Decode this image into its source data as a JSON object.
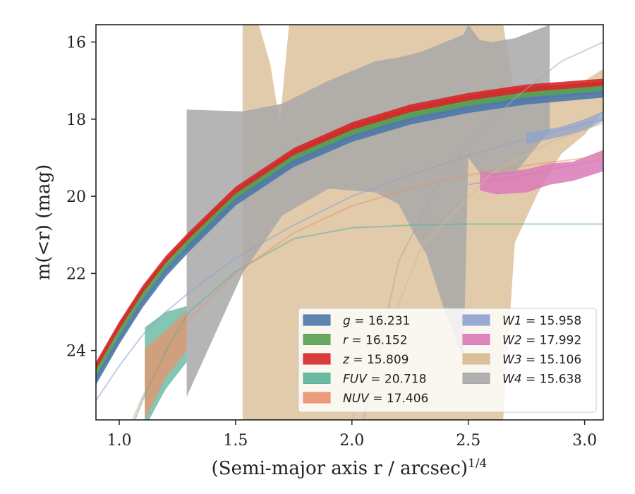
{
  "chart_data": {
    "type": "line",
    "xlabel": "(Semi-major axis r / arcsec)",
    "xlabel_exponent": "1/4",
    "ylabel": "m(<r) (mag)",
    "xlim": [
      0.9,
      3.08
    ],
    "ylim": [
      25.8,
      15.55
    ],
    "y_inverted": true,
    "grid": false,
    "legend_position": "lower right",
    "x_ticks": [
      1.0,
      1.5,
      2.0,
      2.5,
      3.0
    ],
    "x_tick_labels": [
      "1.0",
      "1.5",
      "2.0",
      "2.5",
      "3.0"
    ],
    "y_ticks": [
      16,
      18,
      20,
      22,
      24
    ],
    "y_tick_labels": [
      "16",
      "18",
      "20",
      "22",
      "24"
    ],
    "series": [
      {
        "name": "g",
        "legend_value": "16.231",
        "color": "#4c78a8",
        "x": [
          0.9,
          1.0,
          1.1,
          1.2,
          1.3,
          1.5,
          1.75,
          2.0,
          2.25,
          2.5,
          2.75,
          3.08
        ],
        "y": [
          24.75,
          23.7,
          22.75,
          21.95,
          21.3,
          20.1,
          19.1,
          18.45,
          18.0,
          17.7,
          17.48,
          17.3
        ],
        "band_width": 0.28,
        "line_alpha": 0.8,
        "band_alpha": 0.9
      },
      {
        "name": "r",
        "legend_value": "16.152",
        "color": "#59a14f",
        "x": [
          0.9,
          1.0,
          1.1,
          1.2,
          1.3,
          1.5,
          1.75,
          2.0,
          2.25,
          2.5,
          2.75,
          3.08
        ],
        "y": [
          24.55,
          23.5,
          22.55,
          21.75,
          21.12,
          19.95,
          18.95,
          18.3,
          17.85,
          17.55,
          17.32,
          17.15
        ],
        "band_width": 0.22,
        "line_alpha": 0.8,
        "band_alpha": 0.9
      },
      {
        "name": "z",
        "legend_value": "15.809",
        "color": "#d62728",
        "x": [
          0.9,
          1.0,
          1.1,
          1.2,
          1.3,
          1.5,
          1.75,
          2.0,
          2.25,
          2.5,
          2.75,
          3.08
        ],
        "y": [
          24.4,
          23.35,
          22.42,
          21.65,
          21.02,
          19.85,
          18.85,
          18.18,
          17.72,
          17.42,
          17.2,
          17.05
        ],
        "band_width": 0.2,
        "line_alpha": 0.8,
        "band_alpha": 0.9
      },
      {
        "name": "FUV",
        "legend_value": "20.718",
        "color": "#59b39a",
        "x": [
          0.9,
          1.0,
          1.1,
          1.2,
          1.3,
          1.5,
          1.75,
          2.0,
          2.25,
          2.5,
          2.75,
          3.08
        ],
        "y": [
          27.8,
          26.8,
          25.3,
          24.0,
          23.0,
          21.95,
          21.1,
          20.82,
          20.75,
          20.72,
          20.72,
          20.72
        ],
        "band_x": [
          1.11,
          1.2,
          1.29
        ],
        "band_lo": [
          23.4,
          23.0,
          22.85
        ],
        "band_hi": [
          26.0,
          25.0,
          24.3
        ],
        "line_alpha": 0.55,
        "band_alpha": 0.75
      },
      {
        "name": "NUV",
        "legend_value": "17.406",
        "color": "#e8916c",
        "x": [
          0.9,
          1.0,
          1.1,
          1.2,
          1.3,
          1.5,
          1.75,
          2.0,
          2.25,
          2.5,
          2.75,
          3.08
        ],
        "y": [
          28.0,
          26.6,
          25.2,
          24.1,
          23.2,
          22.0,
          20.95,
          20.25,
          19.8,
          19.45,
          19.2,
          18.95
        ],
        "band_x": [
          1.11,
          1.2,
          1.29
        ],
        "band_lo": [
          23.95,
          23.5,
          22.95
        ],
        "band_hi": [
          25.8,
          24.7,
          24.0
        ],
        "line_alpha": 0.5,
        "band_alpha": 0.75
      },
      {
        "name": "W1",
        "legend_value": "15.958",
        "color": "#8fa3cf",
        "x": [
          0.9,
          1.0,
          1.1,
          1.2,
          1.3,
          1.5,
          1.75,
          2.0,
          2.25,
          2.5,
          2.75,
          3.08
        ],
        "y": [
          25.3,
          24.4,
          23.6,
          23.0,
          22.5,
          21.6,
          20.75,
          20.0,
          19.45,
          18.95,
          18.5,
          18.0
        ],
        "band_x": [
          2.75,
          2.9,
          3.0,
          3.08
        ],
        "band_lo": [
          18.35,
          18.2,
          18.0,
          17.8
        ],
        "band_hi": [
          18.65,
          18.45,
          18.3,
          18.05
        ],
        "line_alpha": 0.55,
        "band_alpha": 0.75
      },
      {
        "name": "W2",
        "legend_value": "17.992",
        "color": "#d97ab8",
        "x": [
          2.5,
          2.7,
          2.9,
          3.08
        ],
        "y": [
          19.7,
          19.5,
          19.25,
          19.05
        ],
        "band_x": [
          2.55,
          2.62,
          2.75,
          2.85,
          2.95,
          3.08
        ],
        "band_lo": [
          19.35,
          19.4,
          19.3,
          19.15,
          19.1,
          18.8
        ],
        "band_hi": [
          19.85,
          19.95,
          19.9,
          19.7,
          19.6,
          19.35
        ],
        "line_alpha": 0.6,
        "band_alpha": 0.85
      },
      {
        "name": "W3",
        "legend_value": "15.106",
        "color": "#d7b98e",
        "x": [
          2.0,
          2.3,
          2.6,
          2.85,
          3.08
        ],
        "y": [
          25.8,
          21.3,
          19.4,
          18.6,
          18.1
        ],
        "band_x": [
          1.53,
          1.6,
          1.65,
          1.69,
          1.73,
          1.8,
          1.9,
          2.0,
          2.1,
          2.2,
          2.3,
          2.4,
          2.5,
          2.6,
          2.65,
          2.7,
          2.8,
          2.9,
          3.0,
          3.08
        ],
        "band_lo": [
          15.55,
          15.55,
          16.6,
          18.1,
          15.55,
          15.55,
          15.55,
          15.55,
          15.55,
          15.55,
          15.55,
          15.55,
          15.55,
          15.55,
          15.55,
          17.4,
          17.4,
          17.2,
          17.0,
          16.7
        ],
        "band_hi": [
          25.8,
          25.8,
          25.8,
          25.8,
          25.8,
          25.8,
          25.8,
          25.8,
          25.8,
          25.8,
          25.8,
          25.8,
          25.8,
          25.8,
          25.8,
          21.2,
          19.9,
          18.9,
          18.4,
          17.8
        ],
        "line_alpha": 0.5,
        "band_alpha": 0.75
      },
      {
        "name": "W4",
        "legend_value": "15.638",
        "color": "#a8a8a8",
        "x": [
          2.05,
          2.2,
          2.35,
          2.5,
          2.7,
          2.9,
          3.08
        ],
        "y": [
          25.8,
          21.7,
          19.9,
          18.65,
          17.45,
          16.5,
          16.0
        ],
        "band_x": [
          1.29,
          1.53,
          1.7,
          1.9,
          2.1,
          2.2,
          2.27,
          2.32,
          2.4,
          2.48,
          2.5,
          2.55,
          2.6,
          2.7,
          2.85
        ],
        "band_lo": [
          17.75,
          17.8,
          17.6,
          17.0,
          16.5,
          16.4,
          16.3,
          16.2,
          16.0,
          15.8,
          15.55,
          15.95,
          16.0,
          15.9,
          15.55
        ],
        "band_hi": [
          25.2,
          22.0,
          20.5,
          19.8,
          19.9,
          20.2,
          21.0,
          21.5,
          23.0,
          24.2,
          19.0,
          19.4,
          19.5,
          19.4,
          18.3
        ],
        "line_alpha": 0.5,
        "band_alpha": 0.85
      }
    ]
  }
}
